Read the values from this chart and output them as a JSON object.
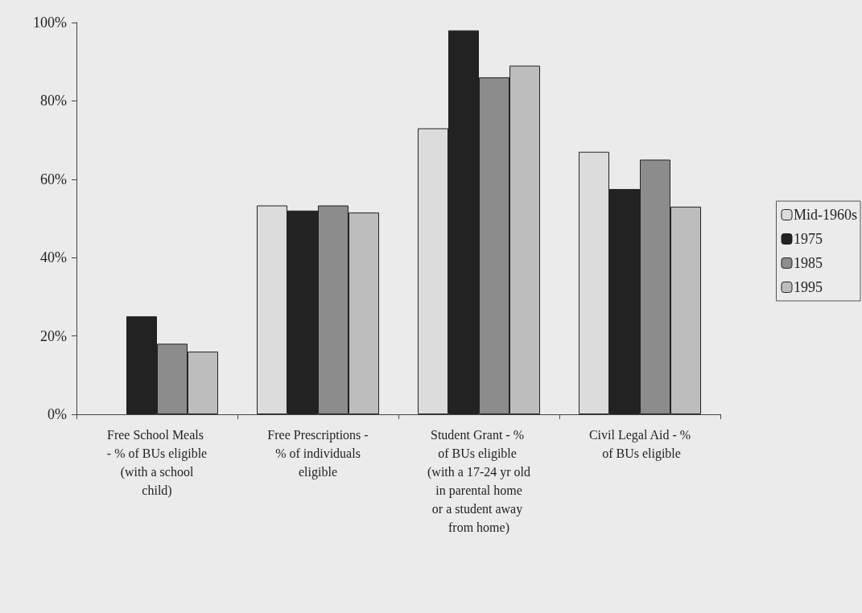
{
  "chart_data": {
    "type": "bar",
    "categories": [
      "Free School Meals - % of BUs eligible (with a school child)",
      "Free Prescriptions - % of individuals eligible",
      "Student Grant - % of BUs eligible (with a 17-24 yr old in parental home or a student away from home)",
      "Civil Legal Aid - % of BUs eligible"
    ],
    "series": [
      {
        "name": "Mid-1960s",
        "color": "#dcdcdc",
        "values": [
          null,
          53.3,
          73,
          67
        ]
      },
      {
        "name": "1975",
        "color": "#222222",
        "values": [
          25,
          52,
          98,
          57.5
        ]
      },
      {
        "name": "1985",
        "color": "#8c8c8c",
        "values": [
          18,
          53.3,
          86,
          65
        ]
      },
      {
        "name": "1995",
        "color": "#bdbdbd",
        "values": [
          16,
          51.5,
          89,
          53
        ]
      }
    ],
    "ylim": [
      0,
      100
    ],
    "yticks": [
      {
        "value": 0,
        "label": "0%"
      },
      {
        "value": 20,
        "label": "20%"
      },
      {
        "value": 40,
        "label": "40%"
      },
      {
        "value": 60,
        "label": "60%"
      },
      {
        "value": 80,
        "label": "80%"
      },
      {
        "value": 100,
        "label": "100%"
      }
    ],
    "grid": false,
    "legend": "right"
  }
}
